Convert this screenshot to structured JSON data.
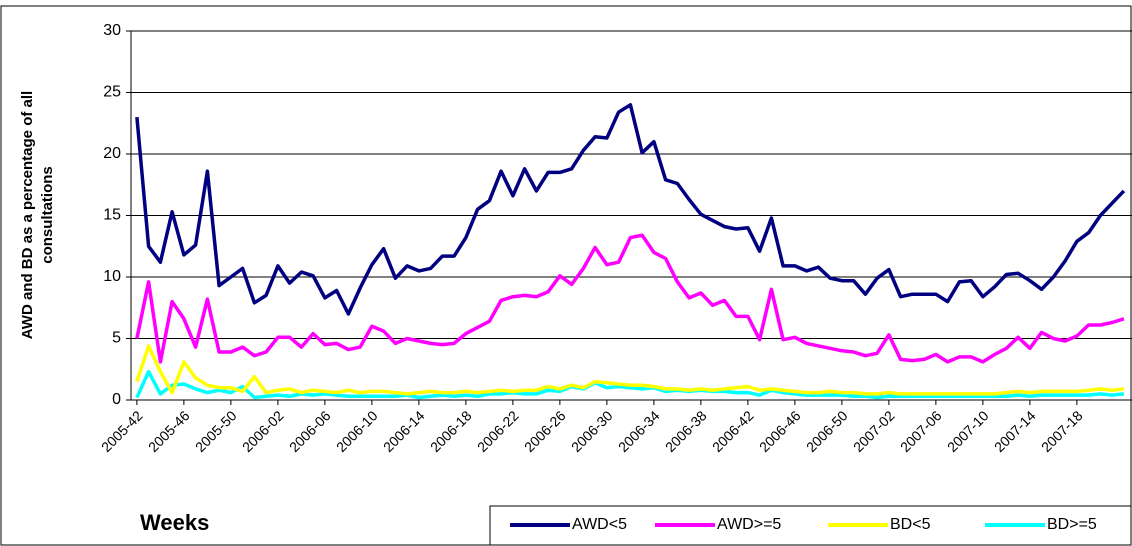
{
  "chart_data": {
    "type": "line",
    "y_label": [
      "AWD and BD as a percentage of all",
      "consultations"
    ],
    "x_label": "Weeks",
    "categories": [
      "2005-42",
      null,
      null,
      null,
      "2005-46",
      null,
      null,
      null,
      "2005-50",
      null,
      null,
      null,
      "2006-02",
      null,
      null,
      null,
      "2006-06",
      null,
      null,
      null,
      "2006-10",
      null,
      null,
      null,
      "2006-14",
      null,
      null,
      null,
      "2006-18",
      null,
      null,
      null,
      "2006-22",
      null,
      null,
      null,
      "2006-26",
      null,
      null,
      null,
      "2006-30",
      null,
      null,
      null,
      "2006-34",
      null,
      null,
      null,
      "2006-38",
      null,
      null,
      null,
      "2006-42",
      null,
      null,
      null,
      "2006-46",
      null,
      null,
      null,
      "2006-50",
      null,
      null,
      null,
      "2007-02",
      null,
      null,
      null,
      "2007-06",
      null,
      null,
      null,
      "2007-10",
      null,
      null,
      null,
      "2007-14",
      null,
      null,
      null,
      "2007-18",
      null,
      null,
      null,
      null
    ],
    "series": [
      {
        "name": "AWD<5",
        "color": "#000080",
        "values": [
          23,
          12.5,
          11.2,
          15.3,
          11.8,
          12.6,
          18.6,
          9.3,
          10,
          10.7,
          7.9,
          8.5,
          10.9,
          9.5,
          10.4,
          10.1,
          8.3,
          8.9,
          7,
          9.1,
          11,
          12.3,
          9.9,
          10.9,
          10.5,
          10.7,
          11.7,
          11.7,
          13.2,
          15.5,
          16.2,
          18.6,
          16.6,
          18.8,
          17,
          18.5,
          18.5,
          18.8,
          20.3,
          21.4,
          21.3,
          23.4,
          24,
          20.1,
          21,
          17.9,
          17.6,
          16.3,
          15.1,
          14.6,
          14.1,
          13.9,
          14,
          12.1,
          14.8,
          10.9,
          10.9,
          10.5,
          10.8,
          9.9,
          9.7,
          9.7,
          8.6,
          9.9,
          10.6,
          8.4,
          8.6,
          8.6,
          8.6,
          8,
          9.6,
          9.7,
          8.4,
          9.2,
          10.2,
          10.3,
          9.7,
          9,
          10,
          11.3,
          12.9,
          13.6,
          15,
          16,
          17
        ]
      },
      {
        "name": "AWD>=5",
        "color": "#ff00ff",
        "values": [
          5,
          9.6,
          3.1,
          8,
          6.6,
          4.3,
          8.2,
          3.9,
          3.9,
          4.3,
          3.6,
          3.9,
          5.1,
          5.1,
          4.3,
          5.4,
          4.5,
          4.6,
          4.1,
          4.3,
          6,
          5.6,
          4.6,
          5,
          4.8,
          4.6,
          4.5,
          4.6,
          5.4,
          5.9,
          6.4,
          8.1,
          8.4,
          8.5,
          8.4,
          8.8,
          10.1,
          9.4,
          10.7,
          12.4,
          11,
          11.2,
          13.2,
          13.4,
          12,
          11.5,
          9.6,
          8.3,
          8.7,
          7.7,
          8.1,
          6.8,
          6.8,
          4.9,
          9,
          4.9,
          5.1,
          4.6,
          4.4,
          4.2,
          4,
          3.9,
          3.6,
          3.8,
          5.3,
          3.3,
          3.2,
          3.3,
          3.7,
          3.1,
          3.5,
          3.5,
          3.1,
          3.7,
          4.2,
          5.1,
          4.2,
          5.5,
          5,
          4.8,
          5.2,
          6.1,
          6.1,
          6.3,
          6.6
        ]
      },
      {
        "name": "BD<5",
        "color": "#ffff00",
        "values": [
          1.5,
          4.4,
          2.3,
          0.6,
          3.1,
          1.8,
          1.2,
          1.0,
          1.0,
          0.7,
          1.9,
          0.6,
          0.8,
          0.9,
          0.6,
          0.8,
          0.7,
          0.6,
          0.8,
          0.6,
          0.7,
          0.7,
          0.6,
          0.5,
          0.6,
          0.7,
          0.6,
          0.6,
          0.7,
          0.6,
          0.7,
          0.8,
          0.7,
          0.8,
          0.8,
          1.1,
          0.9,
          1.2,
          1.0,
          1.5,
          1.4,
          1.3,
          1.2,
          1.2,
          1.1,
          0.9,
          0.9,
          0.8,
          0.9,
          0.8,
          0.9,
          1.0,
          1.1,
          0.8,
          0.9,
          0.8,
          0.7,
          0.6,
          0.6,
          0.7,
          0.6,
          0.6,
          0.5,
          0.5,
          0.6,
          0.5,
          0.5,
          0.5,
          0.5,
          0.5,
          0.5,
          0.5,
          0.5,
          0.5,
          0.6,
          0.7,
          0.6,
          0.7,
          0.7,
          0.7,
          0.7,
          0.8,
          0.9,
          0.8,
          0.9
        ]
      },
      {
        "name": "BD>=5",
        "color": "#00ffff",
        "values": [
          0.2,
          2.3,
          0.5,
          1.2,
          1.3,
          0.9,
          0.6,
          0.8,
          0.6,
          1.1,
          0.2,
          0.3,
          0.4,
          0.3,
          0.5,
          0.4,
          0.5,
          0.4,
          0.3,
          0.3,
          0.3,
          0.3,
          0.3,
          0.4,
          0.2,
          0.3,
          0.4,
          0.3,
          0.4,
          0.3,
          0.5,
          0.5,
          0.6,
          0.5,
          0.5,
          0.8,
          0.7,
          1.1,
          0.9,
          1.4,
          1.0,
          1.1,
          1.0,
          0.9,
          1.0,
          0.7,
          0.8,
          0.7,
          0.8,
          0.7,
          0.7,
          0.6,
          0.6,
          0.4,
          0.8,
          0.6,
          0.5,
          0.4,
          0.4,
          0.4,
          0.4,
          0.3,
          0.3,
          0.2,
          0.3,
          0.3,
          0.3,
          0.3,
          0.3,
          0.3,
          0.3,
          0.3,
          0.3,
          0.3,
          0.3,
          0.4,
          0.3,
          0.4,
          0.4,
          0.4,
          0.4,
          0.4,
          0.5,
          0.4,
          0.5
        ]
      }
    ],
    "ylim": [
      0,
      30
    ],
    "yticks": [
      0,
      5,
      10,
      15,
      20,
      25,
      30
    ],
    "grid": true,
    "legend": "bottom-right"
  }
}
